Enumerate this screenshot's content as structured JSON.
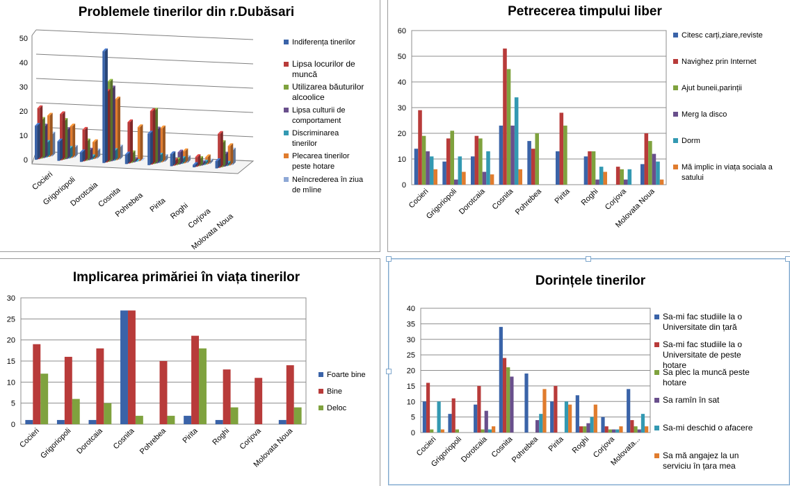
{
  "cat_short": [
    "Cocieri",
    "Grigoriopoli",
    "Dorotcaia",
    "Cosnita",
    "Pohrebea",
    "Pirita",
    "Roghi",
    "Corjova",
    "Molovata Noua"
  ],
  "chart_data": [
    {
      "id": "c1",
      "type": "bar",
      "title": "Problemele tinerilor din r.Dubăsari",
      "categories": [
        "Cocieri",
        "Grigoriopoli",
        "Dorotcaia",
        "Cosnita",
        "Pohrebea",
        "Pirita",
        "Roghi",
        "Corjova",
        "Molovata Noua"
      ],
      "ylim": [
        0,
        50
      ],
      "yticks": [
        0,
        10,
        20,
        30,
        40,
        50
      ],
      "grid": true,
      "legend": "right",
      "series": [
        {
          "name": "Indiferența tinerilor",
          "color": "#3a63a8",
          "values": [
            14,
            8,
            4,
            46,
            4,
            13,
            5,
            1,
            3
          ]
        },
        {
          "name": "Lipsa locurilor de muncă",
          "color": "#b83b3a",
          "values": [
            21,
            19,
            13,
            29,
            17,
            22,
            2,
            4,
            14
          ]
        },
        {
          "name": "Utilizarea băuturilor alcoolice",
          "color": "#7fa23e",
          "values": [
            16,
            16,
            8,
            33,
            4,
            22,
            2,
            3,
            10
          ]
        },
        {
          "name": "Lipsa culturii de comportament",
          "color": "#694f8c",
          "values": [
            13,
            12,
            4,
            30,
            1,
            14,
            5,
            1,
            5
          ]
        },
        {
          "name": "Discriminarea tinerilor",
          "color": "#3399b2",
          "values": [
            6,
            4,
            1,
            4,
            0,
            3,
            2,
            1,
            1
          ]
        },
        {
          "name": "Plecarea tinerilor peste hotare",
          "color": "#e07c2e",
          "values": [
            17,
            13,
            7,
            25,
            14,
            14,
            5,
            3,
            8
          ]
        },
        {
          "name": "Neîncrederea în ziua de mîine",
          "color": "#8ea8d6",
          "values": [
            9,
            4,
            3,
            5,
            0,
            2,
            2,
            1,
            6
          ]
        }
      ]
    },
    {
      "id": "c2",
      "type": "bar",
      "title": "Petrecerea timpului liber",
      "categories": [
        "Cocieri",
        "Grigoriopoli",
        "Dorotcaia",
        "Cosnita",
        "Pohrebea",
        "Pirita",
        "Roghi",
        "Corjova",
        "Molovata Noua"
      ],
      "ylim": [
        0,
        60
      ],
      "yticks": [
        0,
        10,
        20,
        30,
        40,
        50,
        60
      ],
      "grid": true,
      "legend": "right",
      "series": [
        {
          "name": "Citesc carți,ziare,reviste",
          "color": "#3a63a8",
          "values": [
            14,
            9,
            11,
            23,
            17,
            13,
            11,
            0,
            8
          ]
        },
        {
          "name": "Navighez prin Internet",
          "color": "#b83b3a",
          "values": [
            29,
            18,
            19,
            53,
            14,
            28,
            13,
            7,
            20
          ]
        },
        {
          "name": "Ajut buneii,parinții",
          "color": "#7fa23e",
          "values": [
            19,
            21,
            18,
            45,
            20,
            23,
            13,
            6,
            17
          ]
        },
        {
          "name": "Merg la disco",
          "color": "#694f8c",
          "values": [
            13,
            2,
            5,
            23,
            0,
            0,
            2,
            2,
            12
          ]
        },
        {
          "name": "Dorm",
          "color": "#3399b2",
          "values": [
            11,
            11,
            13,
            34,
            0,
            0,
            7,
            6,
            9
          ]
        },
        {
          "name": "Mă implic in viața sociala a satului",
          "color": "#e07c2e",
          "values": [
            6,
            5,
            4,
            6,
            0,
            0,
            5,
            0,
            2
          ]
        }
      ]
    },
    {
      "id": "c3",
      "type": "bar",
      "title": "Implicarea primăriei în viața tinerilor",
      "categories": [
        "Cocieri",
        "Grigoriopoli",
        "Dorotcaia",
        "Cosnita",
        "Pohrebea",
        "Pirita",
        "Roghi",
        "Corjova",
        "Molovata Noua"
      ],
      "ylim": [
        0,
        30
      ],
      "yticks": [
        0,
        5,
        10,
        15,
        20,
        25,
        30
      ],
      "grid": true,
      "legend": "right",
      "series": [
        {
          "name": "Foarte bine",
          "color": "#3a63a8",
          "values": [
            1,
            1,
            1,
            27,
            0,
            2,
            1,
            0,
            1
          ]
        },
        {
          "name": "Bine",
          "color": "#b83b3a",
          "values": [
            19,
            16,
            18,
            27,
            15,
            21,
            13,
            11,
            14
          ]
        },
        {
          "name": "Deloc",
          "color": "#7fa23e",
          "values": [
            12,
            6,
            5,
            2,
            2,
            18,
            4,
            0,
            4
          ]
        }
      ]
    },
    {
      "id": "c4",
      "type": "bar",
      "title": "Dorințele tinerilor",
      "categories": [
        "Cocieri",
        "Grigoriopoli",
        "Dorotcaia",
        "Cosnita",
        "Pohrebea",
        "Pirita",
        "Roghi",
        "Corjova",
        "Molovata..."
      ],
      "ylim": [
        0,
        40
      ],
      "yticks": [
        0,
        5,
        10,
        15,
        20,
        25,
        30,
        35,
        40
      ],
      "grid": true,
      "legend": "right",
      "series": [
        {
          "name": "Sa-mi fac studiile la o Universitate din țară",
          "color": "#3a63a8",
          "values": [
            10,
            6,
            9,
            34,
            19,
            10,
            12,
            5,
            14
          ]
        },
        {
          "name": "Sa-mi fac studiile la o Universitate de peste hotare",
          "color": "#b83b3a",
          "values": [
            16,
            11,
            15,
            24,
            0,
            15,
            2,
            2,
            4
          ]
        },
        {
          "name": "Sa plec la muncă peste hotare",
          "color": "#7fa23e",
          "values": [
            1,
            1,
            1,
            21,
            0,
            0,
            2,
            1,
            2
          ]
        },
        {
          "name": "Sa ramîn în sat",
          "color": "#694f8c",
          "values": [
            0,
            0,
            7,
            18,
            4,
            0,
            3,
            1,
            1
          ]
        },
        {
          "name": "Sa-mi deschid o afacere",
          "color": "#3399b2",
          "values": [
            10,
            0,
            1,
            0,
            6,
            10,
            5,
            1,
            6
          ]
        },
        {
          "name": "Sa mă angajez la un serviciu în țara mea",
          "color": "#e07c2e",
          "values": [
            1,
            0,
            2,
            0,
            14,
            9,
            9,
            2,
            2
          ]
        }
      ]
    }
  ]
}
